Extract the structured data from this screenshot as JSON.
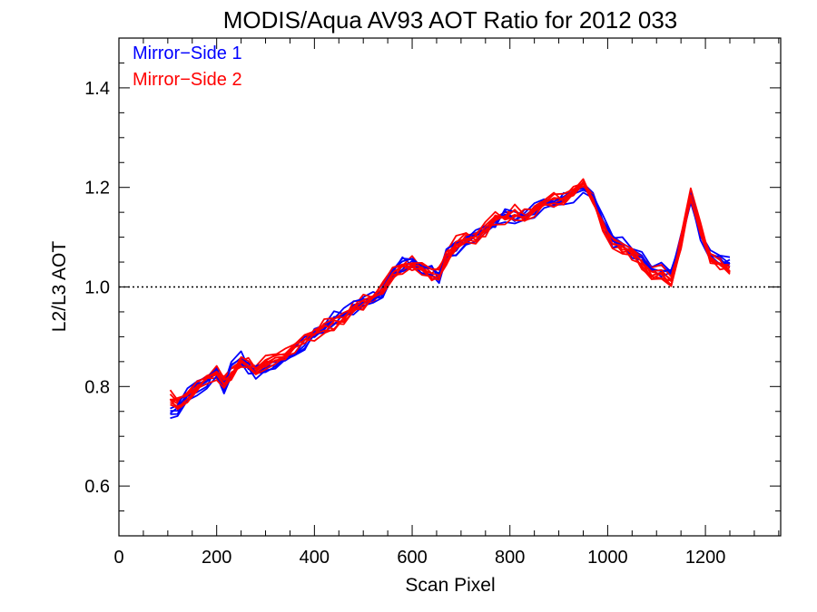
{
  "chart_data": {
    "type": "line",
    "title": "MODIS/Aqua AV93 AOT Ratio for 2012 033",
    "xlabel": "Scan Pixel",
    "ylabel": "L2/L3 AOT",
    "xlim": [
      0,
      1354
    ],
    "ylim": [
      0.5,
      1.5
    ],
    "x_ticks": [
      0,
      200,
      400,
      600,
      800,
      1000,
      1200
    ],
    "x_tick_labels": [
      "0",
      "200",
      "400",
      "600",
      "800",
      "1000",
      "1200"
    ],
    "y_ticks": [
      0.6,
      0.8,
      1.0,
      1.2,
      1.4
    ],
    "y_tick_labels": [
      "0.6",
      "0.8",
      "1.0",
      "1.2",
      "1.4"
    ],
    "reference_line": {
      "y": 1.0,
      "style": "dotted",
      "color": "#000000"
    },
    "legend": {
      "position": "top-left",
      "entries": [
        {
          "label": "Mirror−Side 1",
          "color": "#0000ff"
        },
        {
          "label": "Mirror−Side 2",
          "color": "#ff0000"
        }
      ]
    },
    "x": [
      105,
      120,
      140,
      160,
      180,
      200,
      215,
      230,
      250,
      265,
      280,
      300,
      320,
      340,
      360,
      380,
      400,
      420,
      440,
      460,
      480,
      500,
      520,
      540,
      560,
      580,
      600,
      620,
      640,
      655,
      670,
      690,
      710,
      730,
      750,
      770,
      790,
      810,
      830,
      850,
      870,
      890,
      910,
      930,
      950,
      970,
      990,
      1010,
      1030,
      1050,
      1070,
      1090,
      1110,
      1130,
      1150,
      1170,
      1190,
      1210,
      1230,
      1250
    ],
    "series": [
      {
        "mirror_side": 1,
        "color": "#0000ff",
        "values": [
          0.75,
          0.76,
          0.79,
          0.8,
          0.81,
          0.84,
          0.8,
          0.84,
          0.86,
          0.84,
          0.83,
          0.84,
          0.85,
          0.86,
          0.87,
          0.89,
          0.91,
          0.92,
          0.94,
          0.95,
          0.96,
          0.97,
          0.98,
          0.99,
          1.03,
          1.05,
          1.05,
          1.04,
          1.04,
          1.02,
          1.07,
          1.08,
          1.09,
          1.11,
          1.12,
          1.13,
          1.15,
          1.14,
          1.15,
          1.16,
          1.17,
          1.17,
          1.18,
          1.19,
          1.2,
          1.19,
          1.14,
          1.1,
          1.09,
          1.07,
          1.06,
          1.04,
          1.04,
          1.03,
          1.1,
          1.18,
          1.11,
          1.07,
          1.06,
          1.05
        ]
      },
      {
        "mirror_side": 2,
        "color": "#ff0000",
        "values": [
          0.78,
          0.77,
          0.78,
          0.8,
          0.82,
          0.83,
          0.81,
          0.83,
          0.85,
          0.85,
          0.84,
          0.85,
          0.86,
          0.87,
          0.88,
          0.9,
          0.91,
          0.92,
          0.93,
          0.94,
          0.96,
          0.97,
          0.98,
          1.0,
          1.03,
          1.04,
          1.05,
          1.04,
          1.03,
          1.03,
          1.06,
          1.09,
          1.1,
          1.1,
          1.12,
          1.14,
          1.14,
          1.15,
          1.15,
          1.16,
          1.17,
          1.18,
          1.18,
          1.2,
          1.21,
          1.18,
          1.13,
          1.09,
          1.08,
          1.07,
          1.05,
          1.03,
          1.03,
          1.02,
          1.09,
          1.19,
          1.12,
          1.06,
          1.05,
          1.04
        ]
      }
    ]
  }
}
